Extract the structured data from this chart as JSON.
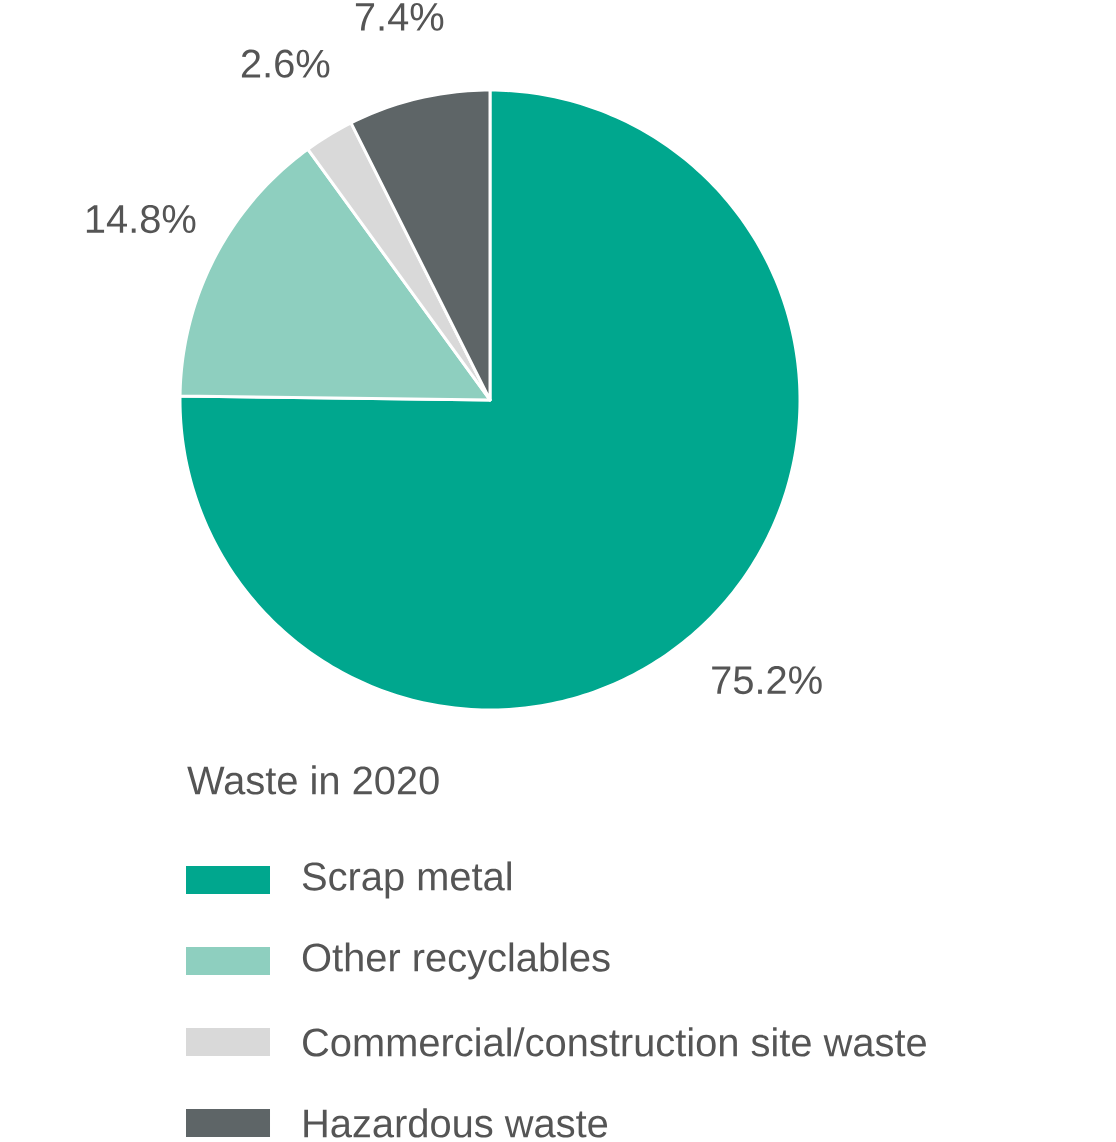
{
  "chart_data": {
    "type": "pie",
    "categories": [
      "Scrap metal",
      "Other recyclables",
      "Commercial/construction site waste",
      "Hazardous waste"
    ],
    "values": [
      75.2,
      14.8,
      2.6,
      7.4
    ],
    "value_labels": [
      "75.2%",
      "14.8%",
      "2.6%",
      "7.4%"
    ],
    "colors": [
      "#00a78e",
      "#8ecfbf",
      "#d9d9d9",
      "#5e6567"
    ],
    "legend_title": "Waste in 2020",
    "legend": "bottom"
  }
}
